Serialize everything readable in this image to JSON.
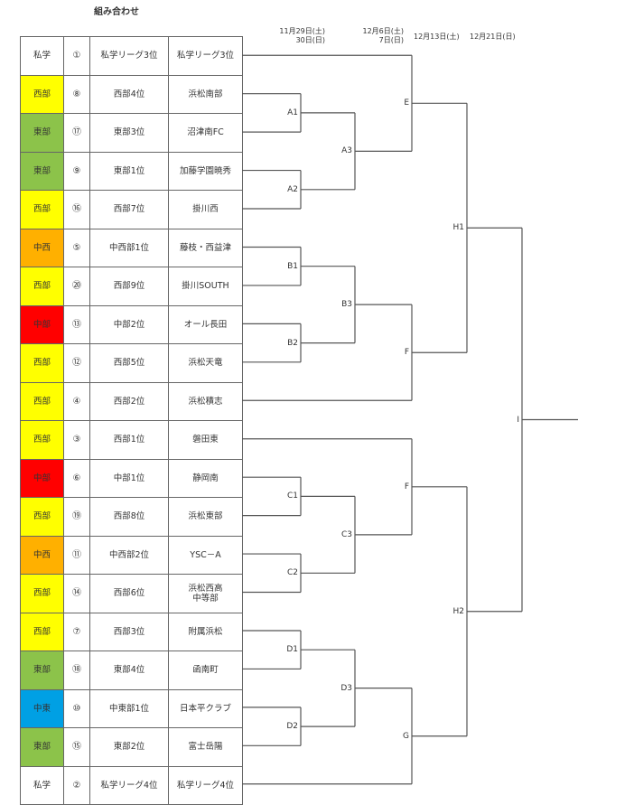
{
  "title": "組み合わせ",
  "dates": [
    {
      "line1": "11月29日(土)",
      "line2": "30日(日)"
    },
    {
      "line1": "12月6日(土)",
      "line2": "7日(日)"
    },
    {
      "line1": "12月13日(土)",
      "line2": ""
    },
    {
      "line1": "12月21日(日)",
      "line2": ""
    }
  ],
  "region_colors": {
    "私学": "#ffffff",
    "西部": "#ffff00",
    "東部": "#8cc34a",
    "中西": "#ffb000",
    "中部": "#ff0000",
    "中東": "#00a0e4"
  },
  "rows": [
    {
      "region": "私学",
      "seed": "①",
      "rank": "私学リーグ3位",
      "team": "私学リーグ3位"
    },
    {
      "region": "西部",
      "seed": "⑧",
      "rank": "西部4位",
      "team": "浜松南部"
    },
    {
      "region": "東部",
      "seed": "⑰",
      "rank": "東部3位",
      "team": "沼津南FC"
    },
    {
      "region": "東部",
      "seed": "⑨",
      "rank": "東部1位",
      "team": "加藤学園暁秀"
    },
    {
      "region": "西部",
      "seed": "⑯",
      "rank": "西部7位",
      "team": "掛川西"
    },
    {
      "region": "中西",
      "seed": "⑤",
      "rank": "中西部1位",
      "team": "藤枝・西益津"
    },
    {
      "region": "西部",
      "seed": "⑳",
      "rank": "西部9位",
      "team": "掛川SOUTH"
    },
    {
      "region": "中部",
      "seed": "⑬",
      "rank": "中部2位",
      "team": "オール長田"
    },
    {
      "region": "西部",
      "seed": "⑫",
      "rank": "西部5位",
      "team": "浜松天竜"
    },
    {
      "region": "西部",
      "seed": "④",
      "rank": "西部2位",
      "team": "浜松積志"
    },
    {
      "region": "西部",
      "seed": "③",
      "rank": "西部1位",
      "team": "磐田東"
    },
    {
      "region": "中部",
      "seed": "⑥",
      "rank": "中部1位",
      "team": "静岡南"
    },
    {
      "region": "西部",
      "seed": "⑲",
      "rank": "西部8位",
      "team": "浜松東部"
    },
    {
      "region": "中西",
      "seed": "⑪",
      "rank": "中西部2位",
      "team": "YSC－A"
    },
    {
      "region": "西部",
      "seed": "⑭",
      "rank": "西部6位",
      "team": "浜松西高\n中等部"
    },
    {
      "region": "西部",
      "seed": "⑦",
      "rank": "西部3位",
      "team": "附属浜松"
    },
    {
      "region": "東部",
      "seed": "⑱",
      "rank": "東部4位",
      "team": "函南町"
    },
    {
      "region": "中東",
      "seed": "⑩",
      "rank": "中東部1位",
      "team": "日本平クラブ"
    },
    {
      "region": "東部",
      "seed": "⑮",
      "rank": "東部2位",
      "team": "富士岳陽"
    },
    {
      "region": "私学",
      "seed": "②",
      "rank": "私学リーグ4位",
      "team": "私学リーグ4位"
    }
  ],
  "matches": [
    "A1",
    "A2",
    "A3",
    "B1",
    "B2",
    "B3",
    "C1",
    "C2",
    "C3",
    "D1",
    "D2",
    "D3",
    "E",
    "F",
    "F",
    "G",
    "H1",
    "H2",
    "I"
  ]
}
